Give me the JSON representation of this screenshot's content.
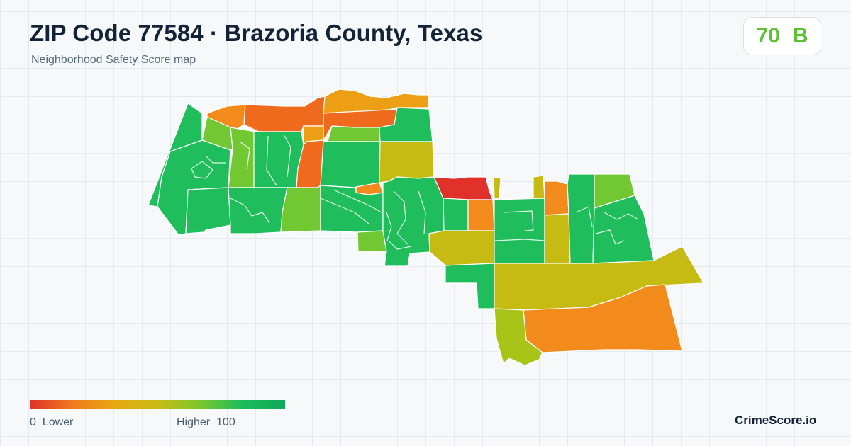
{
  "header": {
    "title": "ZIP Code 77584 · Brazoria County, Texas",
    "subtitle": "Neighborhood Safety Score map"
  },
  "score": {
    "value": "70",
    "grade": "B",
    "color": "#5cc234"
  },
  "legend": {
    "min_value": "0",
    "min_label": "Lower",
    "max_label": "Higher",
    "max_value": "100",
    "colors": [
      "#e0322a",
      "#f07a1e",
      "#e8a812",
      "#c8bc12",
      "#7cc72e",
      "#1bbd5a",
      "#12a85a"
    ]
  },
  "brand": "CrimeScore.io",
  "map_palette": {
    "red": "#e0322a",
    "red_orange": "#f06a1e",
    "orange": "#f28a1c",
    "amber": "#ec9f14",
    "olive": "#c6bb12",
    "lime": "#a8c419",
    "light_green": "#72c832",
    "green": "#20bd5c"
  }
}
